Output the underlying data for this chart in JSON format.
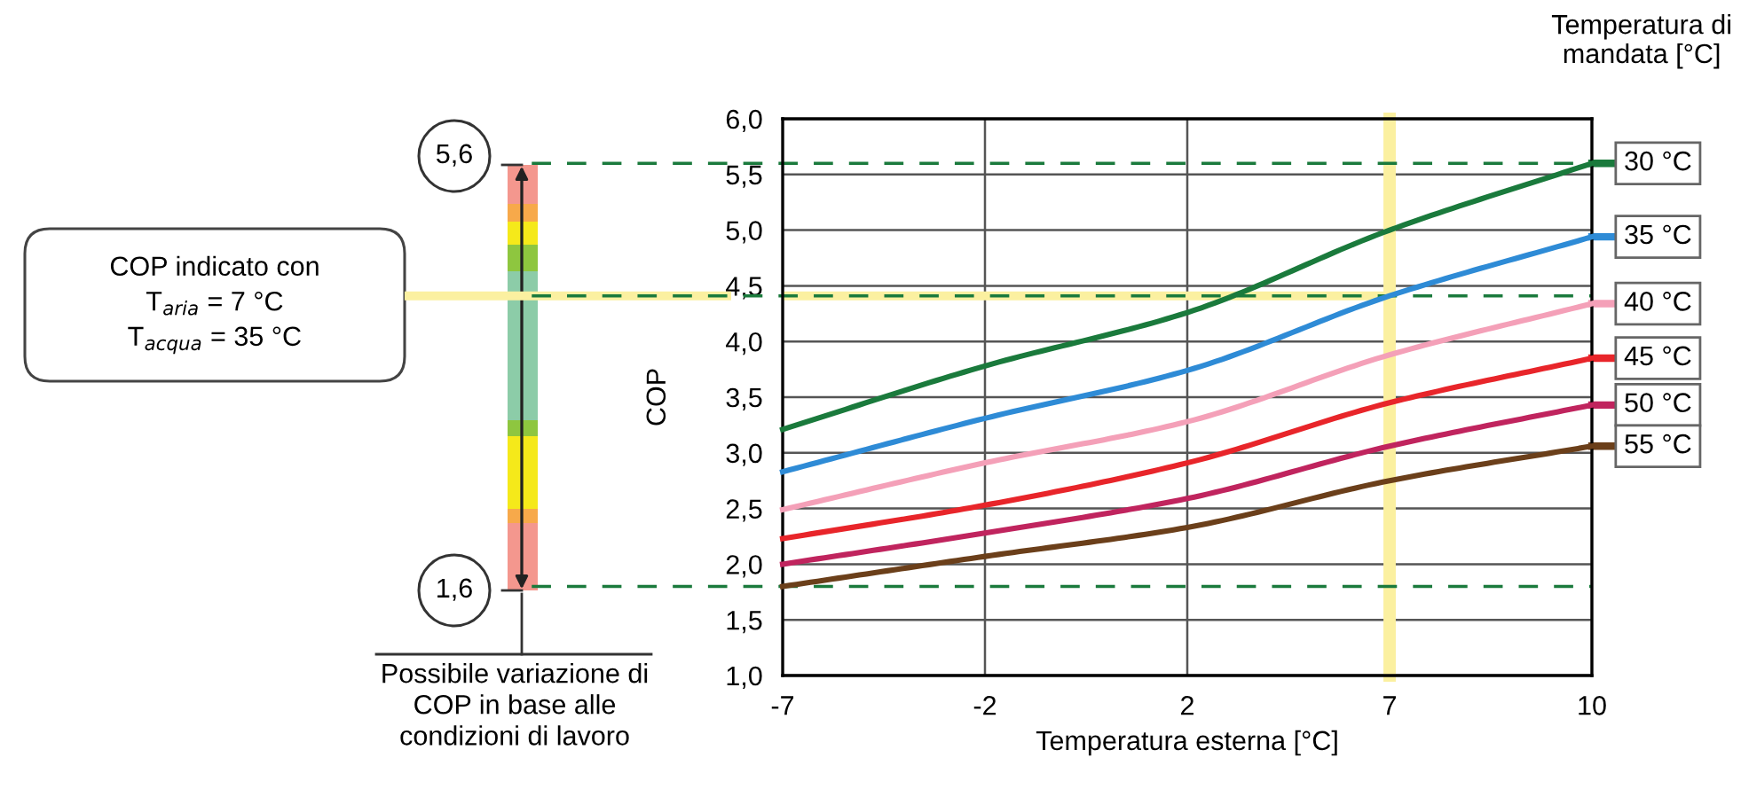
{
  "chart_data": {
    "type": "line",
    "xlabel": "Temperatura esterna [°C]",
    "ylabel": "COP",
    "legend_title": "Temperatura di\nmandata [°C]",
    "categories": [
      "-7",
      "-2",
      "2",
      "7",
      "10"
    ],
    "series": [
      {
        "name": "30 °C",
        "color": "#1a7a3c",
        "values": [
          3.21,
          3.78,
          4.26,
          5.0,
          5.6
        ]
      },
      {
        "name": "35 °C",
        "color": "#2e8bd6",
        "values": [
          2.83,
          3.31,
          3.74,
          4.41,
          4.94
        ]
      },
      {
        "name": "40 °C",
        "color": "#f4a0b8",
        "values": [
          2.49,
          2.91,
          3.28,
          3.88,
          4.34
        ]
      },
      {
        "name": "45 °C",
        "color": "#e8252a",
        "values": [
          2.23,
          2.53,
          2.91,
          3.45,
          3.85
        ]
      },
      {
        "name": "50 °C",
        "color": "#c0245e",
        "values": [
          2.0,
          2.28,
          2.59,
          3.06,
          3.43
        ]
      },
      {
        "name": "55 °C",
        "color": "#6b3f1a",
        "values": [
          1.8,
          2.07,
          2.33,
          2.75,
          3.06
        ]
      }
    ],
    "ylim": [
      1.0,
      6.0
    ],
    "yticks": [
      {
        "value": 1.0,
        "label": "1,0"
      },
      {
        "value": 1.5,
        "label": "1,5"
      },
      {
        "value": 2.0,
        "label": "2,0"
      },
      {
        "value": 2.5,
        "label": "2,5"
      },
      {
        "value": 3.0,
        "label": "3,0"
      },
      {
        "value": 3.5,
        "label": "3,5"
      },
      {
        "value": 4.0,
        "label": "4,0"
      },
      {
        "value": 4.5,
        "label": "4,5"
      },
      {
        "value": 5.0,
        "label": "5,0"
      },
      {
        "value": 5.5,
        "label": "5,5"
      },
      {
        "value": 6.0,
        "label": "6,0"
      }
    ],
    "ref_lines": [
      {
        "axis": "y",
        "value": 5.6,
        "color": "#1a7a3c",
        "line_style": "dashed"
      },
      {
        "axis": "y",
        "value": 4.41,
        "color": "#1a7a3c",
        "line_style": "dashed"
      },
      {
        "axis": "y",
        "value": 1.8,
        "color": "#1a7a3c",
        "line_style": "dashed"
      },
      {
        "axis": "x",
        "value": "7",
        "color": "#fbf0a0"
      }
    ],
    "bands": [
      {
        "axis": "y",
        "from": 4.37,
        "to": 4.45,
        "color": "#fbf0a0"
      }
    ],
    "annotations": [
      "COP indicato con\nT$_{aria}$ = 7 °C\nT$_{acqua}$ = 35 °C",
      "5,6",
      "1,6",
      "Possibile variazione di\nCOP in base alle\ncondizioni di lavoro"
    ],
    "grid": true,
    "legend": "right",
    "marker": "none",
    "line_style": "solid"
  }
}
